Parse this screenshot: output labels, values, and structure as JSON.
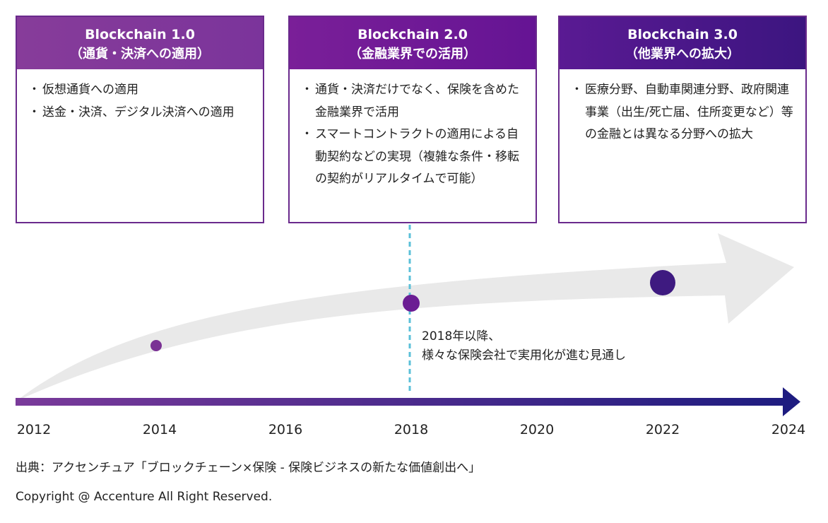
{
  "cards": [
    {
      "title": "Blockchain 1.0",
      "subtitle": "（通貨・決済への適用）",
      "bullets": [
        "仮想通貨への適用",
        "送金・決済、デジタル決済への適用"
      ]
    },
    {
      "title": "Blockchain 2.0",
      "subtitle": "（金融業界での活用）",
      "bullets": [
        "通貨・決済だけでなく、保険を含めた金融業界で活用",
        "スマートコントラクトの適用による自動契約などの実現（複雑な条件・移転の契約がリアルタイムで可能）"
      ]
    },
    {
      "title": "Blockchain 3.0",
      "subtitle": "（他業界への拡大）",
      "bullets": [
        "医療分野、自動車関連分野、政府関連事業（出生/死亡届、住所変更など）等の金融とは異なる分野への拡大"
      ]
    }
  ],
  "bullet_mark": "・",
  "timeline": {
    "years": [
      "2012",
      "2014",
      "2016",
      "2018",
      "2020",
      "2022",
      "2024"
    ],
    "milestones": [
      {
        "year": 2014,
        "size": "small"
      },
      {
        "year": 2018,
        "size": "medium"
      },
      {
        "year": 2022,
        "size": "large"
      }
    ],
    "marker_year": 2018,
    "callout_lines": [
      "2018年以降、",
      "様々な保険会社で実用化が進む見通し"
    ]
  },
  "source": "出典：アクセンチュア「ブロックチェーン×保険 - 保険ビジネスの新たな価値創出へ」",
  "copyright": "Copyright @ Accenture All Right Reserved.",
  "colors": {
    "purple_light": "#873c9a",
    "purple_mid": "#6b1d93",
    "purple_dark": "#3e1a80",
    "marker_line": "#5bc0d8",
    "growth_arrow": "#e9e9e9"
  }
}
